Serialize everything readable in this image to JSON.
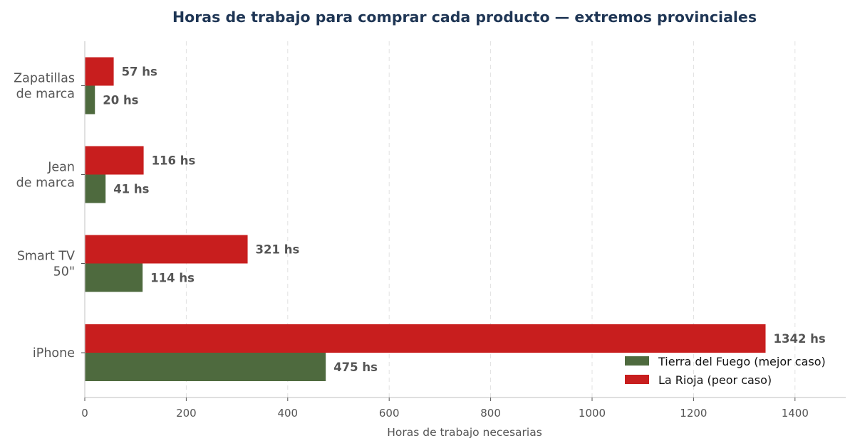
{
  "chart_data": {
    "type": "bar",
    "orientation": "horizontal",
    "title": "Horas de trabajo para comprar cada producto — extremos provinciales",
    "xlabel": "Horas de trabajo necesarias",
    "ylabel": "",
    "xlim": [
      0,
      1500
    ],
    "xticks": [
      0,
      200,
      400,
      600,
      800,
      1000,
      1200,
      1400
    ],
    "grid": true,
    "legend_position": "bottom-right",
    "categories": [
      [
        "Zapatillas",
        "de marca"
      ],
      [
        "Jean",
        "de marca"
      ],
      [
        "Smart TV",
        "50\""
      ],
      [
        "iPhone"
      ]
    ],
    "series": [
      {
        "name": "La Rioja (peor caso)",
        "color": "#c81e1e",
        "values": [
          57,
          116,
          321,
          1342
        ],
        "labels": [
          "57 hs",
          "116 hs",
          "321 hs",
          "1342 hs"
        ]
      },
      {
        "name": "Tierra del Fuego (mejor caso)",
        "color": "#4e6a3e",
        "values": [
          20,
          41,
          114,
          475
        ],
        "labels": [
          "20 hs",
          "41 hs",
          "114 hs",
          "475 hs"
        ]
      }
    ],
    "legend_order": [
      "Tierra del Fuego (mejor caso)",
      "La Rioja (peor caso)"
    ]
  }
}
